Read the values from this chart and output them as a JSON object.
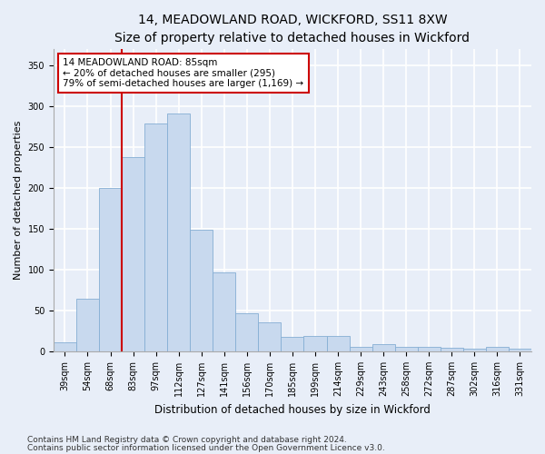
{
  "title1": "14, MEADOWLAND ROAD, WICKFORD, SS11 8XW",
  "title2": "Size of property relative to detached houses in Wickford",
  "xlabel": "Distribution of detached houses by size in Wickford",
  "ylabel": "Number of detached properties",
  "categories": [
    "39sqm",
    "54sqm",
    "68sqm",
    "83sqm",
    "97sqm",
    "112sqm",
    "127sqm",
    "141sqm",
    "156sqm",
    "170sqm",
    "185sqm",
    "199sqm",
    "214sqm",
    "229sqm",
    "243sqm",
    "258sqm",
    "272sqm",
    "287sqm",
    "302sqm",
    "316sqm",
    "331sqm"
  ],
  "bar_heights": [
    11,
    64,
    200,
    238,
    279,
    291,
    149,
    97,
    47,
    35,
    18,
    19,
    19,
    6,
    9,
    6,
    5,
    4,
    3,
    5,
    3
  ],
  "bar_color": "#c8d9ee",
  "bar_edge_color": "#85aed4",
  "vline_color": "#cc0000",
  "annotation_text": "14 MEADOWLAND ROAD: 85sqm\n← 20% of detached houses are smaller (295)\n79% of semi-detached houses are larger (1,169) →",
  "annotation_box_color": "#ffffff",
  "annotation_box_edge": "#cc0000",
  "ylim": [
    0,
    370
  ],
  "yticks": [
    0,
    50,
    100,
    150,
    200,
    250,
    300,
    350
  ],
  "footnote1": "Contains HM Land Registry data © Crown copyright and database right 2024.",
  "footnote2": "Contains public sector information licensed under the Open Government Licence v3.0.",
  "background_color": "#e8eef8",
  "grid_color": "#ffffff",
  "title1_fontsize": 10,
  "title2_fontsize": 9,
  "xlabel_fontsize": 8.5,
  "ylabel_fontsize": 8,
  "tick_fontsize": 7,
  "annotation_fontsize": 7.5,
  "footnote_fontsize": 6.5
}
